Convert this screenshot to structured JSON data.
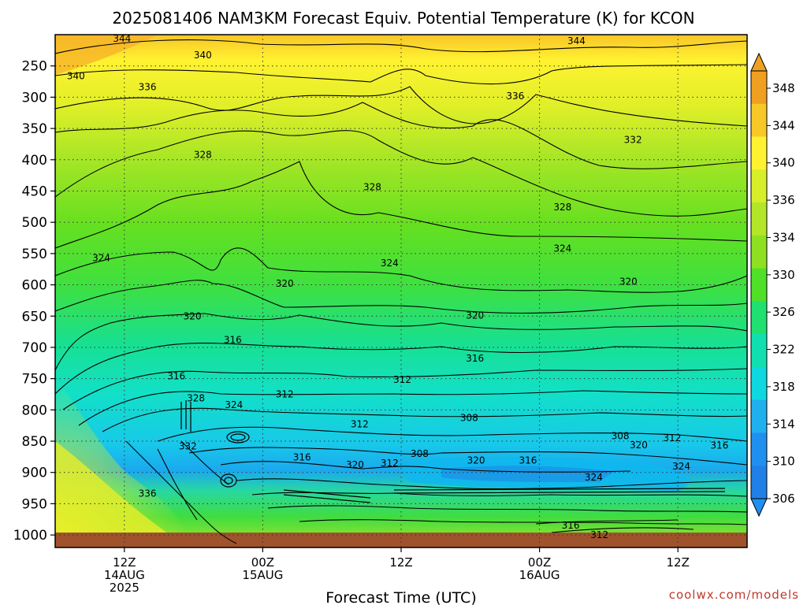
{
  "chart_data": {
    "type": "heatmap",
    "title": "2025081406 NAM3KM Forecast Equiv. Potential Temperature (K) for KCON",
    "xlabel": "Forecast Time (UTC)",
    "x_ticks": [
      {
        "hour": 12,
        "lines": [
          "12Z",
          "14AUG",
          "2025"
        ]
      },
      {
        "hour": 24,
        "lines": [
          "00Z",
          "15AUG"
        ]
      },
      {
        "hour": 36,
        "lines": [
          "12Z"
        ]
      },
      {
        "hour": 48,
        "lines": [
          "00Z",
          "16AUG"
        ]
      },
      {
        "hour": 60,
        "lines": [
          "12Z"
        ]
      }
    ],
    "y_ticks": [
      250,
      300,
      350,
      400,
      450,
      500,
      550,
      600,
      650,
      700,
      750,
      800,
      850,
      900,
      950,
      1000
    ],
    "ylim": [
      200,
      1020
    ],
    "xlim": [
      6,
      66
    ],
    "grid": true,
    "colorbar": {
      "ticks": [
        348,
        344,
        340,
        336,
        334,
        330,
        326,
        322,
        318,
        314,
        310,
        306
      ],
      "colors": [
        "#f0a020",
        "#f8c828",
        "#fff230",
        "#d8ee28",
        "#b4e628",
        "#8ee020",
        "#50e028",
        "#20e070",
        "#10e0b0",
        "#10d8e0",
        "#20b0ee",
        "#2090f0",
        "#2080e8"
      ]
    },
    "contour_labels": [
      {
        "text": "344",
        "x": 11.8,
        "p": 206
      },
      {
        "text": "344",
        "x": 51.2,
        "p": 210
      },
      {
        "text": "340",
        "x": 18.8,
        "p": 233
      },
      {
        "text": "340",
        "x": 7.8,
        "p": 266
      },
      {
        "text": "336",
        "x": 14.0,
        "p": 284
      },
      {
        "text": "336",
        "x": 45.9,
        "p": 298
      },
      {
        "text": "332",
        "x": 56.1,
        "p": 368
      },
      {
        "text": "328",
        "x": 18.8,
        "p": 392
      },
      {
        "text": "328",
        "x": 33.5,
        "p": 444
      },
      {
        "text": "328",
        "x": 50.0,
        "p": 476
      },
      {
        "text": "324",
        "x": 10.0,
        "p": 557
      },
      {
        "text": "324",
        "x": 35.0,
        "p": 565
      },
      {
        "text": "324",
        "x": 50.0,
        "p": 542
      },
      {
        "text": "320",
        "x": 25.9,
        "p": 598
      },
      {
        "text": "320",
        "x": 55.7,
        "p": 595
      },
      {
        "text": "320",
        "x": 42.4,
        "p": 649
      },
      {
        "text": "320",
        "x": 17.9,
        "p": 650
      },
      {
        "text": "316",
        "x": 21.4,
        "p": 688
      },
      {
        "text": "316",
        "x": 42.4,
        "p": 718
      },
      {
        "text": "316",
        "x": 16.5,
        "p": 746
      },
      {
        "text": "312",
        "x": 36.1,
        "p": 752
      },
      {
        "text": "312",
        "x": 25.9,
        "p": 775
      },
      {
        "text": "312",
        "x": 32.4,
        "p": 823
      },
      {
        "text": "308",
        "x": 41.9,
        "p": 813
      },
      {
        "text": "308",
        "x": 55.0,
        "p": 842
      },
      {
        "text": "328",
        "x": 18.2,
        "p": 781
      },
      {
        "text": "324",
        "x": 21.5,
        "p": 792
      },
      {
        "text": "332",
        "x": 17.5,
        "p": 858
      },
      {
        "text": "336",
        "x": 14.0,
        "p": 934
      },
      {
        "text": "316",
        "x": 27.4,
        "p": 876
      },
      {
        "text": "320",
        "x": 32.0,
        "p": 888
      },
      {
        "text": "312",
        "x": 35.0,
        "p": 885
      },
      {
        "text": "308",
        "x": 37.6,
        "p": 870
      },
      {
        "text": "320",
        "x": 42.5,
        "p": 881
      },
      {
        "text": "316",
        "x": 47.0,
        "p": 881
      },
      {
        "text": "320",
        "x": 56.6,
        "p": 856
      },
      {
        "text": "312",
        "x": 59.5,
        "p": 845
      },
      {
        "text": "316",
        "x": 63.6,
        "p": 857
      },
      {
        "text": "324",
        "x": 52.7,
        "p": 908
      },
      {
        "text": "324",
        "x": 60.3,
        "p": 890
      },
      {
        "text": "316",
        "x": 50.7,
        "p": 985
      },
      {
        "text": "312",
        "x": 53.2,
        "p": 1000
      }
    ]
  },
  "credit": "coolwx.com/models"
}
